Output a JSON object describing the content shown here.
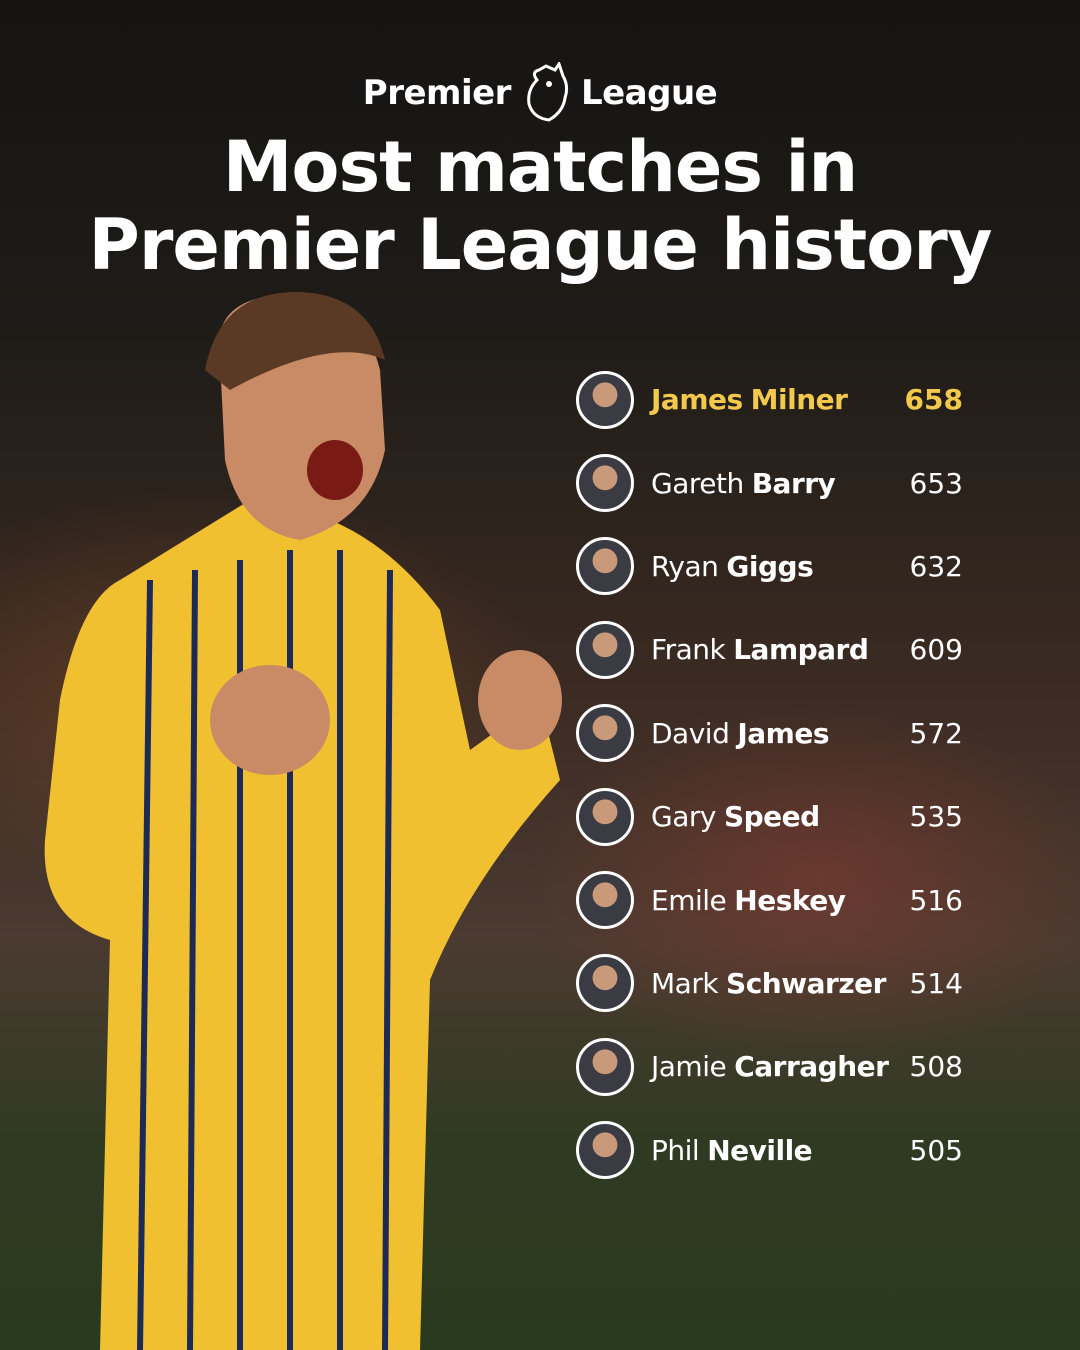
{
  "header": {
    "brand_left": "Premier",
    "brand_right": "League",
    "title_lines": [
      "Most matches in",
      "Premier League history"
    ]
  },
  "list": {
    "rows": [
      {
        "first": "James",
        "last": "Milner",
        "matches": 658
      },
      {
        "first": "Gareth",
        "last": "Barry",
        "matches": 653
      },
      {
        "first": "Ryan",
        "last": "Giggs",
        "matches": 632
      },
      {
        "first": "Frank",
        "last": "Lampard",
        "matches": 609
      },
      {
        "first": "David",
        "last": "James",
        "matches": 572
      },
      {
        "first": "Gary",
        "last": "Speed",
        "matches": 535
      },
      {
        "first": "Emile",
        "last": "Heskey",
        "matches": 516
      },
      {
        "first": "Mark",
        "last": "Schwarzer",
        "matches": 514
      },
      {
        "first": "Jamie",
        "last": "Carragher",
        "matches": 508
      },
      {
        "first": "Phil",
        "last": "Neville",
        "matches": 505
      }
    ]
  }
}
